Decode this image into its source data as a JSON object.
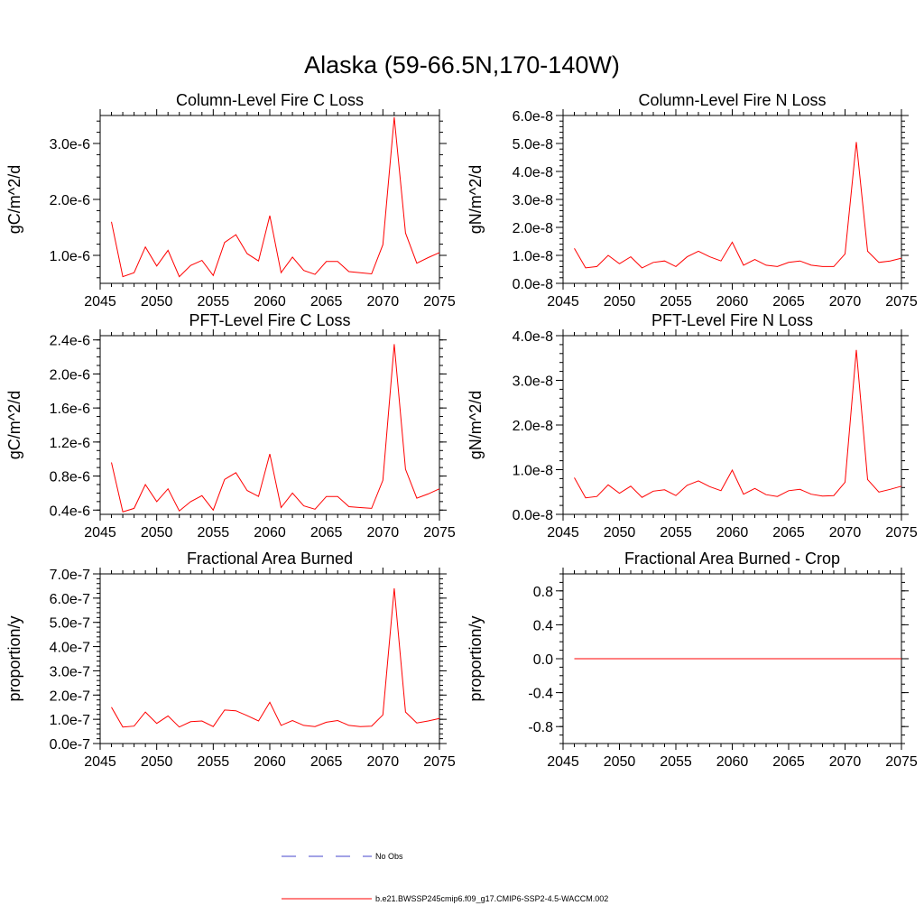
{
  "figure": {
    "title": "Alaska (59-66.5N,170-140W)",
    "xlim": [
      2045,
      2075
    ],
    "x_ticks": [
      "2045",
      "2050",
      "2055",
      "2060",
      "2065",
      "2070",
      "2075"
    ]
  },
  "legend": {
    "items": [
      {
        "label": "No Obs",
        "color": "#4444cc",
        "style": "dashed"
      },
      {
        "label": "b.e21.BWSSP245cmip6.f09_g17.CMIP6-SSP2-4.5-WACCM.002",
        "color": "#ff0000",
        "style": "solid"
      }
    ]
  },
  "chart_data": [
    {
      "type": "line",
      "title": "Column-Level Fire C Loss",
      "ylabel": "gC/m^2/d",
      "ylim": [
        5e-07,
        3.5e-06
      ],
      "y_ticks": [
        {
          "v": 1e-06,
          "label": "1.0e-6"
        },
        {
          "v": 2e-06,
          "label": "2.0e-6"
        },
        {
          "v": 3e-06,
          "label": "3.0e-6"
        }
      ],
      "y_minor": 2e-07,
      "line_color": "#ff0000",
      "series": [
        {
          "x": [
            2046,
            2047,
            2048,
            2049,
            2050,
            2051,
            2052,
            2053,
            2054,
            2055,
            2056,
            2057,
            2058,
            2059,
            2060,
            2061,
            2062,
            2063,
            2064,
            2065,
            2066,
            2067,
            2068,
            2069,
            2070,
            2071,
            2072,
            2073,
            2074,
            2075
          ],
          "values": [
            1.6e-06,
            6.2e-07,
            6.9e-07,
            1.15e-06,
            8.1e-07,
            1.09e-06,
            6.2e-07,
            8.2e-07,
            9.1e-07,
            6.4e-07,
            1.23e-06,
            1.37e-06,
            1.03e-06,
            9e-07,
            1.71e-06,
            6.9e-07,
            9.7e-07,
            7.3e-07,
            6.6e-07,
            8.9e-07,
            8.9e-07,
            7.1e-07,
            6.9e-07,
            6.7e-07,
            1.19e-06,
            3.47e-06,
            1.4e-06,
            8.6e-07,
            9.6e-07,
            1.05e-06
          ]
        }
      ]
    },
    {
      "type": "line",
      "title": "Column-Level Fire N Loss",
      "ylabel": "gN/m^2/d",
      "ylim": [
        0.0,
        6e-08
      ],
      "y_ticks": [
        {
          "v": 0.0,
          "label": "0.0e-8"
        },
        {
          "v": 1e-08,
          "label": "1.0e-8"
        },
        {
          "v": 2e-08,
          "label": "2.0e-8"
        },
        {
          "v": 3e-08,
          "label": "3.0e-8"
        },
        {
          "v": 4e-08,
          "label": "4.0e-8"
        },
        {
          "v": 5e-08,
          "label": "5.0e-8"
        },
        {
          "v": 6e-08,
          "label": "6.0e-8"
        }
      ],
      "y_minor": 2e-09,
      "line_color": "#ff0000",
      "series": [
        {
          "x": [
            2046,
            2047,
            2048,
            2049,
            2050,
            2051,
            2052,
            2053,
            2054,
            2055,
            2056,
            2057,
            2058,
            2059,
            2060,
            2061,
            2062,
            2063,
            2064,
            2065,
            2066,
            2067,
            2068,
            2069,
            2070,
            2071,
            2072,
            2073,
            2074,
            2075
          ],
          "values": [
            1.25e-08,
            5.5e-09,
            6e-09,
            1e-08,
            7e-09,
            9.5e-09,
            5.5e-09,
            7.5e-09,
            8e-09,
            6e-09,
            9.5e-09,
            1.15e-08,
            9.5e-09,
            8e-09,
            1.47e-08,
            6.5e-09,
            8.5e-09,
            6.5e-09,
            6e-09,
            7.5e-09,
            8e-09,
            6.5e-09,
            6e-09,
            6e-09,
            1.05e-08,
            5.05e-08,
            1.15e-08,
            7.5e-09,
            8e-09,
            9e-09
          ]
        }
      ]
    },
    {
      "type": "line",
      "title": "PFT-Level Fire C Loss",
      "ylabel": "gC/m^2/d",
      "ylim": [
        3.5e-07,
        2.45e-06
      ],
      "y_ticks": [
        {
          "v": 4e-07,
          "label": "0.4e-6"
        },
        {
          "v": 8e-07,
          "label": "0.8e-6"
        },
        {
          "v": 1.2e-06,
          "label": "1.2e-6"
        },
        {
          "v": 1.6e-06,
          "label": "1.6e-6"
        },
        {
          "v": 2e-06,
          "label": "2.0e-6"
        },
        {
          "v": 2.4e-06,
          "label": "2.4e-6"
        }
      ],
      "y_minor": 1e-07,
      "line_color": "#ff0000",
      "series": [
        {
          "x": [
            2046,
            2047,
            2048,
            2049,
            2050,
            2051,
            2052,
            2053,
            2054,
            2055,
            2056,
            2057,
            2058,
            2059,
            2060,
            2061,
            2062,
            2063,
            2064,
            2065,
            2066,
            2067,
            2068,
            2069,
            2070,
            2071,
            2072,
            2073,
            2074,
            2075
          ],
          "values": [
            9.6e-07,
            3.8e-07,
            4.2e-07,
            7e-07,
            5e-07,
            6.5e-07,
            3.9e-07,
            5e-07,
            5.7e-07,
            4e-07,
            7.6e-07,
            8.4e-07,
            6.3e-07,
            5.6e-07,
            1.06e-06,
            4.3e-07,
            6e-07,
            4.5e-07,
            4.1e-07,
            5.6e-07,
            5.6e-07,
            4.4e-07,
            4.3e-07,
            4.2e-07,
            7.5e-07,
            2.35e-06,
            8.8e-07,
            5.4e-07,
            5.9e-07,
            6.5e-07
          ]
        }
      ]
    },
    {
      "type": "line",
      "title": "PFT-Level Fire N Loss",
      "ylabel": "gN/m^2/d",
      "ylim": [
        0.0,
        4e-08
      ],
      "y_ticks": [
        {
          "v": 0.0,
          "label": "0.0e-8"
        },
        {
          "v": 1e-08,
          "label": "1.0e-8"
        },
        {
          "v": 2e-08,
          "label": "2.0e-8"
        },
        {
          "v": 3e-08,
          "label": "3.0e-8"
        },
        {
          "v": 4e-08,
          "label": "4.0e-8"
        }
      ],
      "y_minor": 2e-09,
      "line_color": "#ff0000",
      "series": [
        {
          "x": [
            2046,
            2047,
            2048,
            2049,
            2050,
            2051,
            2052,
            2053,
            2054,
            2055,
            2056,
            2057,
            2058,
            2059,
            2060,
            2061,
            2062,
            2063,
            2064,
            2065,
            2066,
            2067,
            2068,
            2069,
            2070,
            2071,
            2072,
            2073,
            2074,
            2075
          ],
          "values": [
            8.2e-09,
            3.7e-09,
            4e-09,
            6.6e-09,
            4.7e-09,
            6.3e-09,
            3.8e-09,
            5.2e-09,
            5.5e-09,
            4.2e-09,
            6.5e-09,
            7.5e-09,
            6.2e-09,
            5.3e-09,
            9.9e-09,
            4.5e-09,
            5.8e-09,
            4.4e-09,
            4e-09,
            5.3e-09,
            5.6e-09,
            4.5e-09,
            4.1e-09,
            4.2e-09,
            7.2e-09,
            3.68e-08,
            7.8e-09,
            5e-09,
            5.6e-09,
            6.3e-09
          ]
        }
      ]
    },
    {
      "type": "line",
      "title": "Fractional Area Burned",
      "ylabel": "proportion/y",
      "ylim": [
        0.0,
        7e-07
      ],
      "y_ticks": [
        {
          "v": 0.0,
          "label": "0.0e-7"
        },
        {
          "v": 1e-07,
          "label": "1.0e-7"
        },
        {
          "v": 2e-07,
          "label": "2.0e-7"
        },
        {
          "v": 3e-07,
          "label": "3.0e-7"
        },
        {
          "v": 4e-07,
          "label": "4.0e-7"
        },
        {
          "v": 5e-07,
          "label": "5.0e-7"
        },
        {
          "v": 6e-07,
          "label": "6.0e-7"
        },
        {
          "v": 7e-07,
          "label": "7.0e-7"
        }
      ],
      "y_minor": 2e-08,
      "line_color": "#ff0000",
      "series": [
        {
          "x": [
            2046,
            2047,
            2048,
            2049,
            2050,
            2051,
            2052,
            2053,
            2054,
            2055,
            2056,
            2057,
            2058,
            2059,
            2060,
            2061,
            2062,
            2063,
            2064,
            2065,
            2066,
            2067,
            2068,
            2069,
            2070,
            2071,
            2072,
            2073,
            2074,
            2075
          ],
          "values": [
            1.5e-07,
            6.8e-08,
            7.2e-08,
            1.3e-07,
            8.3e-08,
            1.14e-07,
            6.8e-08,
            9e-08,
            9.3e-08,
            7e-08,
            1.38e-07,
            1.35e-07,
            1.15e-07,
            9.3e-08,
            1.7e-07,
            7.5e-08,
            9.5e-08,
            7.5e-08,
            7e-08,
            8.8e-08,
            9.5e-08,
            7.5e-08,
            7e-08,
            7.2e-08,
            1.18e-07,
            6.4e-07,
            1.3e-07,
            8.5e-08,
            9.3e-08,
            1.03e-07
          ]
        }
      ]
    },
    {
      "type": "line",
      "title": "Fractional Area Burned - Crop",
      "ylabel": "proportion/y",
      "ylim": [
        -1.0,
        1.0
      ],
      "y_ticks": [
        {
          "v": -0.8,
          "label": "-0.8"
        },
        {
          "v": -0.4,
          "label": "-0.4"
        },
        {
          "v": 0.0,
          "label": "0.0"
        },
        {
          "v": 0.4,
          "label": "0.4"
        },
        {
          "v": 0.8,
          "label": "0.8"
        }
      ],
      "y_minor": 0.1,
      "line_color": "#ff0000",
      "series": [
        {
          "x": [
            2046,
            2047,
            2048,
            2049,
            2050,
            2051,
            2052,
            2053,
            2054,
            2055,
            2056,
            2057,
            2058,
            2059,
            2060,
            2061,
            2062,
            2063,
            2064,
            2065,
            2066,
            2067,
            2068,
            2069,
            2070,
            2071,
            2072,
            2073,
            2074,
            2075
          ],
          "values": [
            0,
            0,
            0,
            0,
            0,
            0,
            0,
            0,
            0,
            0,
            0,
            0,
            0,
            0,
            0,
            0,
            0,
            0,
            0,
            0,
            0,
            0,
            0,
            0,
            0,
            0,
            0,
            0,
            0,
            0
          ]
        }
      ]
    }
  ]
}
